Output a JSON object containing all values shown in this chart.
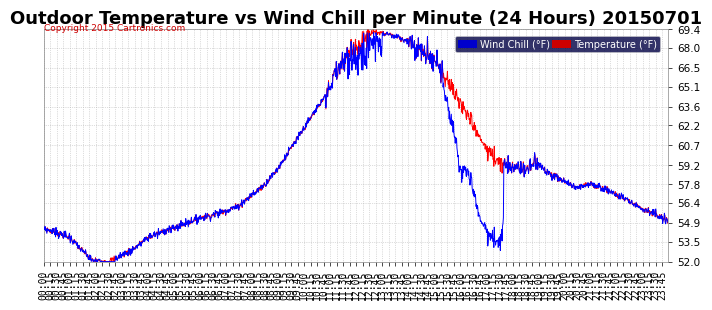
{
  "title": "Outdoor Temperature vs Wind Chill per Minute (24 Hours) 20150701",
  "copyright": "Copyright 2015 Cartronics.com",
  "legend_wind_chill": "Wind Chill (°F)",
  "legend_temperature": "Temperature (°F)",
  "ylim": [
    52.0,
    69.4
  ],
  "yticks": [
    52.0,
    53.5,
    54.9,
    56.4,
    57.8,
    59.2,
    60.7,
    62.2,
    63.6,
    65.1,
    66.5,
    68.0,
    69.4
  ],
  "background_color": "#ffffff",
  "plot_bg_color": "#ffffff",
  "grid_color": "#aaaaaa",
  "title_color": "#000000",
  "tick_color": "#000000",
  "wind_chill_color": "#0000ff",
  "temperature_color": "#ff0000",
  "legend_wind_bg": "#0000cc",
  "legend_temp_bg": "#cc0000",
  "title_fontsize": 13,
  "tick_fontsize": 7.5,
  "xlabel_fontsize": 7,
  "minutes_per_day": 1440,
  "xtick_interval": 15
}
